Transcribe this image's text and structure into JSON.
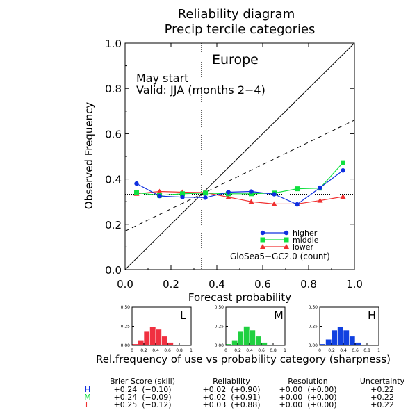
{
  "chart_data": {
    "type": "line",
    "title": "Reliability diagram",
    "subtitle": "Precip tercile categories",
    "region": "Europe",
    "start_text": "May start",
    "valid_text": "Valid: JJA (months 2−4)",
    "model_text": "GloSea5−GC2.0 (count)",
    "xlabel": "Forecast probability",
    "ylabel": "Observed Frequency",
    "xlim": [
      0,
      1
    ],
    "ylim": [
      0,
      1
    ],
    "x_ticks": [
      "0.0",
      "0.2",
      "0.4",
      "0.6",
      "0.8",
      "1.0"
    ],
    "y_ticks": [
      "0.0",
      "0.2",
      "0.4",
      "0.6",
      "0.8",
      "1.0"
    ],
    "climatology": 0.333,
    "no_skill_line": {
      "x": [
        0,
        1
      ],
      "y": [
        0.17,
        0.66
      ]
    },
    "perfect_reliability_line": {
      "x": [
        0,
        1
      ],
      "y": [
        0,
        1
      ]
    },
    "legend_position": "lower-right",
    "x": [
      0.05,
      0.15,
      0.25,
      0.35,
      0.45,
      0.55,
      0.65,
      0.75,
      0.85,
      0.95
    ],
    "series": [
      {
        "name": "higher",
        "color": "#1030e0",
        "marker": "circle",
        "values": [
          0.38,
          0.325,
          0.32,
          0.318,
          0.342,
          0.345,
          0.333,
          0.288,
          0.362,
          0.438
        ]
      },
      {
        "name": "middle",
        "color": "#10e040",
        "marker": "square",
        "values": [
          0.34,
          0.328,
          0.335,
          0.338,
          0.335,
          0.335,
          0.338,
          0.357,
          0.36,
          0.472
        ]
      },
      {
        "name": "lower",
        "color": "#f03030",
        "marker": "triangle",
        "values": [
          0.335,
          0.345,
          0.342,
          0.34,
          0.32,
          0.3,
          0.29,
          0.29,
          0.305,
          0.322
        ]
      }
    ],
    "histograms": {
      "caption": "Rel.frequency of use vs probability category (sharpness)",
      "y_ticks": [
        "0.50",
        "0.25",
        "0.00"
      ],
      "x_ticks": [
        "0",
        "0.2",
        "0.4",
        "0.6",
        "0.8",
        "1"
      ],
      "ylim": [
        0,
        0.5
      ],
      "panels": [
        {
          "letter": "L",
          "color": "#f03040",
          "values": [
            0.02,
            0.07,
            0.19,
            0.24,
            0.21,
            0.12,
            0.04,
            0.01,
            0.0,
            0.0
          ]
        },
        {
          "letter": "M",
          "color": "#20d040",
          "values": [
            0.02,
            0.07,
            0.19,
            0.25,
            0.2,
            0.12,
            0.04,
            0.01,
            0.0,
            0.0
          ]
        },
        {
          "letter": "H",
          "color": "#1040e0",
          "values": [
            0.02,
            0.08,
            0.2,
            0.24,
            0.2,
            0.12,
            0.04,
            0.01,
            0.0,
            0.0
          ]
        }
      ]
    },
    "scores": {
      "headers": [
        "Brier Score (skill)",
        "Reliability",
        "Resolution",
        "Uncertainty"
      ],
      "rows": [
        {
          "label": "H",
          "color": "#1030e0",
          "cells": [
            "+0.24  (−0.10)",
            "+0.02  (+0.90)",
            "+0.00  (+0.00)",
            "+0.22"
          ]
        },
        {
          "label": "M",
          "color": "#10e040",
          "cells": [
            "+0.24  (−0.09)",
            "+0.02  (+0.91)",
            "+0.00  (+0.00)",
            "+0.22"
          ]
        },
        {
          "label": "L",
          "color": "#f03030",
          "cells": [
            "+0.25  (−0.12)",
            "+0.03  (+0.88)",
            "+0.00  (+0.00)",
            "+0.22"
          ]
        }
      ]
    }
  }
}
